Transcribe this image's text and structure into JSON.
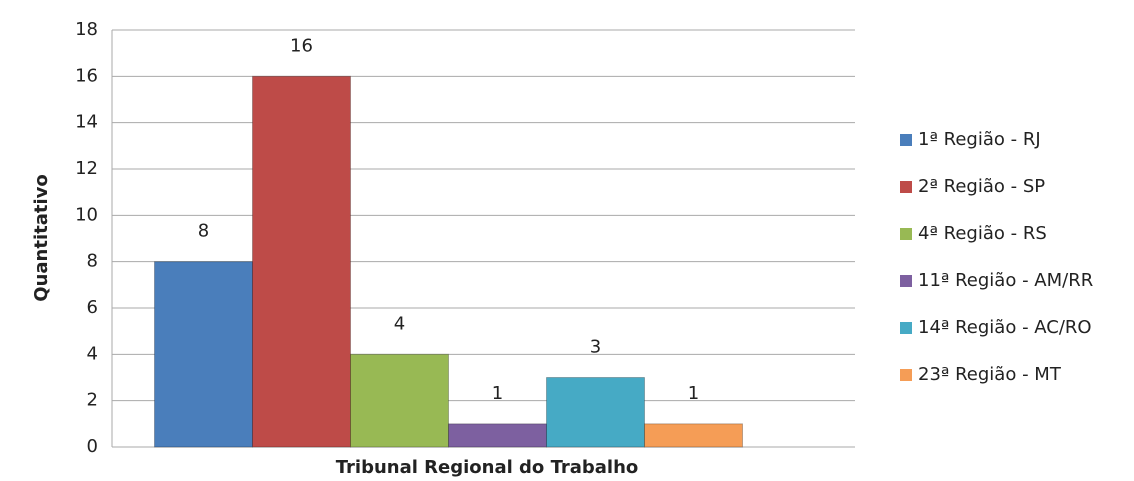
{
  "chart_data": {
    "type": "bar",
    "x_label": "Tribunal Regional do Trabalho",
    "y_label": "Quantitativo",
    "categories": [
      null
    ],
    "series": [
      {
        "name": "1ª Região - RJ",
        "color": "#4a7ebb",
        "values": [
          8
        ]
      },
      {
        "name": "2ª Região - SP",
        "color": "#be4b48",
        "values": [
          16
        ]
      },
      {
        "name": "4ª Região - RS",
        "color": "#98b954",
        "values": [
          4
        ]
      },
      {
        "name": "11ª Região - AM/RR",
        "color": "#7d60a0",
        "values": [
          1
        ]
      },
      {
        "name": "14ª Região - AC/RO",
        "color": "#46aac5",
        "values": [
          3
        ]
      },
      {
        "name": "23ª Região - MT",
        "color": "#f59d56",
        "values": [
          1
        ]
      }
    ],
    "ylim": [
      0,
      18
    ],
    "yticks": [
      0,
      2,
      4,
      6,
      8,
      10,
      12,
      14,
      16,
      18
    ],
    "grid": true,
    "legend": "right"
  }
}
